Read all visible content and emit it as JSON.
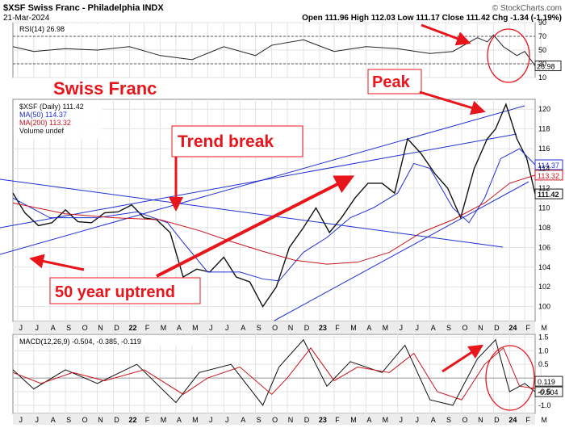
{
  "header": {
    "symbol_line": "$XSF Swiss Franc - Philadelphia INDX",
    "date": "21-Mar-2024",
    "ohlc": "Open 111.96  High 112.03  Low 111.17  Close 111.42  Chg -1.34 (-1.19%)",
    "copyright": "© StockCharts.com"
  },
  "annotations": {
    "swiss_franc": "Swiss Franc",
    "trend_break": "Trend break",
    "peak": "Peak",
    "uptrend": "50 year uptrend"
  },
  "colors": {
    "annotation_red": "#e8151b",
    "price_blue": "#1f2fd6",
    "ma200_red": "#c8151b",
    "bg_gray": "#ececec"
  },
  "chart_data": [
    {
      "type": "line",
      "panel": "rsi",
      "legend": "RSI(14) 26.98",
      "ylim": [
        10,
        90
      ],
      "yticks": [
        10,
        30,
        50,
        70,
        90
      ],
      "guides": [
        30,
        70
      ],
      "last_value_label": "26.98",
      "x": [
        "2021-06-22",
        "2021-08-01",
        "2021-10-01",
        "2021-12-01",
        "2022-02-01",
        "2022-04-01",
        "2022-06-01",
        "2022-08-01",
        "2022-10-01",
        "2022-11-01",
        "2023-01-01",
        "2023-03-01",
        "2023-05-01",
        "2023-07-01",
        "2023-09-01",
        "2023-10-15",
        "2023-12-01",
        "2023-12-20",
        "2024-01-01",
        "2024-01-20",
        "2024-02-15",
        "2024-03-01",
        "2024-03-21"
      ],
      "values": [
        55,
        48,
        52,
        50,
        55,
        42,
        36,
        55,
        42,
        57,
        65,
        48,
        55,
        52,
        45,
        48,
        68,
        62,
        72,
        55,
        42,
        48,
        27
      ]
    },
    {
      "type": "line",
      "panel": "price",
      "legend": [
        "$XSF (Daily) 111.42",
        "MA(50) 114.37",
        "MA(200) 113.32",
        "Volume undef"
      ],
      "ylim": [
        98.5,
        121
      ],
      "yticks": [
        100,
        102,
        104,
        106,
        108,
        110,
        112,
        114,
        116,
        118,
        120
      ],
      "price_labels": [
        "114.37",
        "113.32",
        "111.42"
      ],
      "series": [
        {
          "name": "$XSF (Daily)",
          "x": [
            "2021-06-22",
            "2021-07-15",
            "2021-08-10",
            "2021-09-05",
            "2021-10-01",
            "2021-10-25",
            "2021-11-20",
            "2021-12-15",
            "2022-01-10",
            "2022-02-05",
            "2022-03-01",
            "2022-03-25",
            "2022-04-20",
            "2022-05-15",
            "2022-06-10",
            "2022-07-05",
            "2022-08-01",
            "2022-08-25",
            "2022-09-20",
            "2022-10-15",
            "2022-11-10",
            "2022-12-05",
            "2023-01-01",
            "2023-01-25",
            "2023-02-20",
            "2023-03-15",
            "2023-04-10",
            "2023-05-05",
            "2023-06-01",
            "2023-06-25",
            "2023-07-20",
            "2023-08-15",
            "2023-09-10",
            "2023-10-05",
            "2023-10-30",
            "2023-11-25",
            "2023-12-20",
            "2024-01-05",
            "2024-01-25",
            "2024-02-15",
            "2024-03-05",
            "2024-03-21"
          ],
          "values": [
            111.5,
            109.5,
            108.2,
            108.5,
            109.8,
            108.6,
            108.5,
            109.5,
            109.6,
            110.3,
            109.0,
            108.8,
            107.5,
            103.0,
            103.8,
            103.5,
            105.0,
            103.0,
            102.5,
            100.0,
            102.0,
            106.0,
            108.0,
            110.0,
            107.5,
            109.0,
            111.0,
            112.5,
            112.5,
            111.5,
            117.0,
            115.5,
            113.5,
            112.0,
            109.0,
            114.0,
            117.0,
            118.0,
            120.5,
            117.0,
            115.0,
            111.42
          ]
        },
        {
          "name": "MA(50)",
          "x": [
            "2021-06-22",
            "2021-09-01",
            "2021-12-01",
            "2022-02-15",
            "2022-04-15",
            "2022-05-15",
            "2022-07-01",
            "2022-09-01",
            "2022-10-15",
            "2022-11-15",
            "2023-01-01",
            "2023-02-15",
            "2023-04-01",
            "2023-05-15",
            "2023-07-01",
            "2023-08-01",
            "2023-09-01",
            "2023-10-15",
            "2023-11-15",
            "2023-12-15",
            "2024-01-15",
            "2024-02-20",
            "2024-03-21"
          ],
          "values": [
            111.0,
            109.0,
            109.0,
            109.6,
            108.5,
            106.5,
            103.5,
            103.5,
            102.8,
            102.6,
            105.5,
            107.0,
            109.0,
            110.0,
            111.5,
            114.5,
            114.0,
            110.0,
            108.5,
            111.0,
            115.0,
            116.0,
            114.37
          ]
        },
        {
          "name": "MA(200)",
          "x": [
            "2021-06-22",
            "2021-10-01",
            "2022-01-01",
            "2022-04-01",
            "2022-06-15",
            "2022-08-15",
            "2022-10-15",
            "2022-12-15",
            "2023-02-15",
            "2023-04-15",
            "2023-06-15",
            "2023-08-15",
            "2023-10-15",
            "2023-12-15",
            "2024-02-01",
            "2024-03-21"
          ],
          "values": [
            110.5,
            109.4,
            109.0,
            108.8,
            107.7,
            106.6,
            105.6,
            104.7,
            104.3,
            104.5,
            105.5,
            107.5,
            108.8,
            110.5,
            112.5,
            113.32
          ]
        }
      ]
    },
    {
      "type": "line",
      "panel": "macd",
      "legend": "MACD(12,26,9) -0.504, -0.385, -0.119",
      "ylim": [
        -1.3,
        1.6
      ],
      "yticks": [
        -1.0,
        -0.5,
        0.5,
        1.0,
        1.5
      ],
      "value_labels": [
        "0.119",
        "-0.504"
      ],
      "series": [
        {
          "name": "MACD",
          "x": [
            "2021-06-22",
            "2021-08-01",
            "2021-10-01",
            "2021-12-01",
            "2022-02-15",
            "2022-05-01",
            "2022-06-15",
            "2022-08-15",
            "2022-10-15",
            "2022-11-15",
            "2023-01-01",
            "2023-02-15",
            "2023-04-01",
            "2023-06-01",
            "2023-07-15",
            "2023-09-01",
            "2023-10-15",
            "2023-12-01",
            "2024-01-05",
            "2024-02-01",
            "2024-03-01",
            "2024-03-21"
          ],
          "values": [
            0.3,
            -0.4,
            0.3,
            -0.2,
            0.5,
            -0.9,
            0.2,
            0.5,
            -1.0,
            0.4,
            1.4,
            -0.3,
            0.6,
            0.2,
            1.2,
            -0.8,
            -1.0,
            0.7,
            1.4,
            -0.5,
            -0.2,
            -0.504
          ]
        },
        {
          "name": "Signal",
          "x": [
            "2021-06-22",
            "2021-08-15",
            "2021-10-15",
            "2021-12-15",
            "2022-03-01",
            "2022-05-15",
            "2022-07-01",
            "2022-09-01",
            "2022-11-01",
            "2022-12-01",
            "2023-01-15",
            "2023-03-01",
            "2023-04-15",
            "2023-06-15",
            "2023-08-01",
            "2023-09-15",
            "2023-11-01",
            "2023-12-15",
            "2024-01-20",
            "2024-02-20",
            "2024-03-21"
          ],
          "values": [
            0.2,
            -0.2,
            0.2,
            -0.1,
            0.3,
            -0.6,
            0.0,
            0.4,
            -0.6,
            0.0,
            1.1,
            -0.1,
            0.4,
            0.2,
            0.9,
            -0.5,
            -0.8,
            0.5,
            1.1,
            -0.3,
            -0.385
          ]
        }
      ]
    }
  ],
  "xaxis": {
    "labels": [
      "J",
      "J",
      "A",
      "S",
      "O",
      "N",
      "D",
      "22",
      "F",
      "M",
      "A",
      "M",
      "J",
      "J",
      "A",
      "S",
      "O",
      "N",
      "D",
      "23",
      "F",
      "M",
      "A",
      "M",
      "J",
      "J",
      "A",
      "S",
      "O",
      "N",
      "D",
      "24",
      "F",
      "M"
    ],
    "bold": [
      "22",
      "23",
      "24"
    ]
  }
}
